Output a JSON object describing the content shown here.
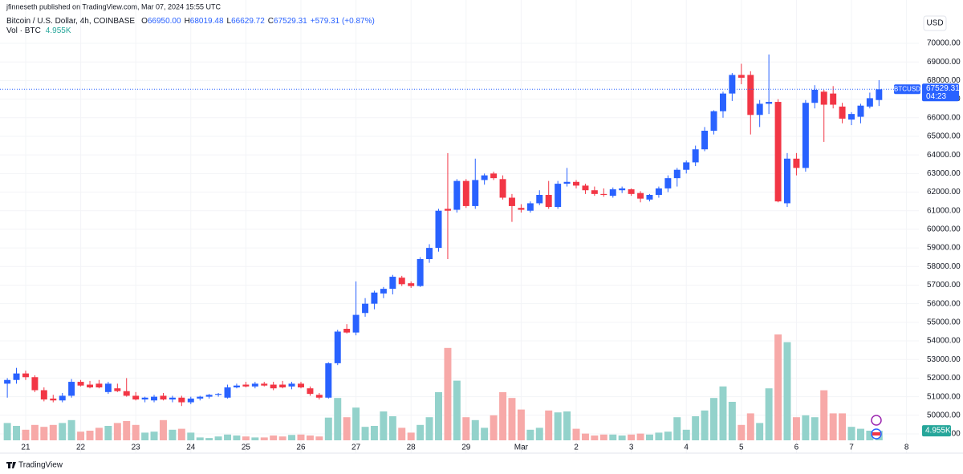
{
  "chart_data": {
    "type": "candlestick",
    "author_line": "jfinneseth published on TradingView.com, Mar 07, 2024 15:55 UTC",
    "symbol": "Bitcoin / U.S. Dollar, 4h, COINBASE",
    "ohlc": [
      {
        "label": "O",
        "value": "66950.00"
      },
      {
        "label": "H",
        "value": "68019.48"
      },
      {
        "label": "L",
        "value": "66629.72"
      },
      {
        "label": "C",
        "value": "67529.31"
      }
    ],
    "change": "+579.31 (+0.87%)",
    "volume_label": "Vol · BTC",
    "volume_value": "4.955K",
    "currency": "USD",
    "ticker": "BTCUSD",
    "last_price": "67529.31",
    "countdown": "04:23",
    "brand": "TradingView",
    "up_color": "#2962ff",
    "down_color": "#f23645",
    "volume_up_color": "#93d2cb",
    "volume_down_color": "#f7a9a8",
    "grid": true,
    "x": [
      20.667,
      20.833,
      21,
      21.167,
      21.333,
      21.5,
      21.667,
      21.833,
      22,
      22.167,
      22.333,
      22.5,
      22.667,
      22.833,
      23,
      23.167,
      23.333,
      23.5,
      23.667,
      23.833,
      24,
      24.167,
      24.333,
      24.5,
      24.667,
      24.833,
      25,
      25.167,
      25.333,
      25.5,
      25.667,
      25.833,
      26,
      26.167,
      26.333,
      26.5,
      26.667,
      26.833,
      27,
      27.167,
      27.333,
      27.5,
      27.667,
      27.833,
      28,
      28.167,
      28.333,
      28.5,
      28.667,
      28.833,
      29,
      29.167,
      29.333,
      29.5,
      29.667,
      29.833,
      30,
      30.167,
      30.333,
      30.5,
      30.667,
      30.833,
      31,
      31.167,
      31.333,
      31.5,
      31.667,
      31.833,
      32,
      32.167,
      32.333,
      32.5,
      32.667,
      32.833,
      33,
      33.167,
      33.333,
      33.5,
      33.667,
      33.833,
      34,
      34.167,
      34.333,
      34.5,
      34.667,
      34.833,
      35,
      35.167,
      35.333,
      35.5,
      35.667,
      35.833,
      36,
      36.167,
      36.333,
      36.5
    ],
    "open": [
      51700,
      51900,
      52250,
      52050,
      51350,
      50900,
      50800,
      51050,
      51800,
      51650,
      51700,
      51250,
      51450,
      51300,
      51050,
      50850,
      50800,
      51050,
      50850,
      50950,
      50700,
      50900,
      51000,
      51100,
      50950,
      51500,
      51650,
      51550,
      51700,
      51650,
      51650,
      51550,
      51700,
      51450,
      51100,
      50950,
      52800,
      54650,
      54450,
      55500,
      56000,
      56550,
      56800,
      57400,
      57100,
      56950,
      58400,
      59000,
      61100,
      61050,
      62600,
      61250,
      62650,
      63000,
      62700,
      61700,
      61150,
      61000,
      61400,
      61850,
      61200,
      62450,
      62550,
      62350,
      62100,
      61900,
      61800,
      62100,
      62150,
      61950,
      61600,
      61850,
      62200,
      62750,
      63200,
      63600,
      64300,
      65300,
      66350,
      67300,
      68300,
      68300,
      66150,
      66750,
      66850,
      61400,
      63800,
      63300,
      66800,
      67400,
      67300,
      66600,
      65900,
      66050,
      66600,
      66950
    ],
    "high": [
      52000,
      52550,
      52400,
      52150,
      51500,
      51100,
      51200,
      51950,
      51900,
      51850,
      51900,
      51800,
      51700,
      52000,
      51250,
      51000,
      51100,
      51200,
      51050,
      51050,
      51000,
      51050,
      51150,
      51200,
      51650,
      51700,
      51800,
      51800,
      51800,
      51800,
      51850,
      51800,
      51800,
      51550,
      51200,
      52850,
      54600,
      54900,
      57200,
      56300,
      56700,
      56900,
      57550,
      57500,
      57200,
      58500,
      59200,
      61100,
      64100,
      62700,
      62700,
      63800,
      63000,
      63100,
      62900,
      61900,
      61350,
      61500,
      62100,
      62600,
      62600,
      63300,
      62650,
      62450,
      62300,
      62200,
      62250,
      62300,
      62200,
      62050,
      61900,
      62300,
      62900,
      63300,
      63700,
      64500,
      65500,
      66400,
      67400,
      68400,
      68900,
      68500,
      66950,
      69400,
      67000,
      64100,
      64100,
      66950,
      67750,
      67500,
      67700,
      66800,
      66300,
      66750,
      67350,
      68019.48
    ],
    "low": [
      50950,
      51700,
      51900,
      51250,
      50750,
      50700,
      50700,
      50950,
      51550,
      51450,
      51450,
      51150,
      51250,
      51000,
      50800,
      50700,
      50700,
      50800,
      50700,
      50500,
      50600,
      50800,
      50900,
      51000,
      50900,
      51450,
      51500,
      51450,
      51550,
      51350,
      51450,
      51400,
      51450,
      51050,
      50850,
      50900,
      52700,
      54400,
      54300,
      55300,
      55700,
      56300,
      56500,
      56950,
      56850,
      56900,
      58200,
      58800,
      58400,
      60900,
      61150,
      61100,
      62400,
      62650,
      61600,
      60400,
      60900,
      60900,
      61300,
      61100,
      61100,
      62300,
      62200,
      61900,
      61800,
      61750,
      61700,
      61950,
      61800,
      61450,
      61500,
      61700,
      62000,
      62300,
      63000,
      63400,
      64200,
      65100,
      66000,
      66900,
      67800,
      65100,
      65500,
      66200,
      61450,
      61200,
      62900,
      63100,
      66500,
      64700,
      66500,
      65700,
      65600,
      65700,
      66500,
      66629.72
    ],
    "close": [
      51900,
      52250,
      52050,
      51350,
      50850,
      50800,
      51050,
      51800,
      51600,
      51500,
      51500,
      51700,
      51300,
      51050,
      50850,
      50950,
      51000,
      50850,
      50950,
      50700,
      50900,
      51000,
      51100,
      51150,
      51500,
      51600,
      51550,
      51700,
      51600,
      51450,
      51500,
      51700,
      51500,
      51150,
      50950,
      52800,
      54500,
      54450,
      55400,
      56000,
      56600,
      56800,
      57450,
      57050,
      56950,
      58400,
      59000,
      61000,
      61000,
      62600,
      61250,
      62650,
      62900,
      62750,
      61700,
      61250,
      61050,
      61400,
      61850,
      61200,
      62450,
      62550,
      62350,
      62100,
      61900,
      61850,
      62150,
      62200,
      61900,
      61650,
      61850,
      62200,
      62750,
      63200,
      63600,
      64300,
      65300,
      66350,
      67300,
      68300,
      68150,
      66150,
      66750,
      66850,
      61500,
      63800,
      63300,
      66800,
      67500,
      66700,
      66700,
      65950,
      66200,
      66650,
      67050,
      67529.31
    ],
    "volume": [
      9000,
      7500,
      5500,
      8000,
      7000,
      8000,
      9000,
      10500,
      4500,
      5000,
      6500,
      7500,
      9000,
      10000,
      8000,
      4000,
      4500,
      10500,
      5500,
      6000,
      4000,
      1500,
      1200,
      2000,
      3000,
      2500,
      2000,
      1500,
      1500,
      2500,
      2000,
      2800,
      3000,
      2500,
      2000,
      11800,
      22000,
      12000,
      17000,
      7000,
      7500,
      15000,
      12500,
      6500,
      4000,
      8000,
      12000,
      25000,
      48000,
      31000,
      12000,
      10500,
      6500,
      13000,
      25000,
      22000,
      16000,
      5500,
      6500,
      15500,
      14500,
      15000,
      6000,
      3500,
      2500,
      3000,
      3000,
      2500,
      3000,
      3500,
      3000,
      4000,
      4500,
      12000,
      5500,
      12500,
      15500,
      22000,
      28000,
      20000,
      8000,
      14000,
      9000,
      27000,
      55000,
      51000,
      12000,
      13000,
      12000,
      26000,
      14000,
      14000,
      7000,
      6000,
      5000,
      4955
    ],
    "xlim": [
      20.534,
      37.224
    ],
    "xticks": [
      21,
      22,
      23,
      24,
      25,
      26,
      27,
      28,
      29,
      {
        "value": 30,
        "label": "Mar"
      },
      {
        "value": 31,
        "label": "2"
      },
      {
        "value": 32,
        "label": "3"
      },
      {
        "value": 33,
        "label": "4"
      },
      {
        "value": 34,
        "label": "5"
      },
      {
        "value": 35,
        "label": "6"
      },
      {
        "value": 36,
        "label": "7"
      },
      {
        "value": 37,
        "label": "8"
      }
    ],
    "ylim": [
      47965,
      72329
    ],
    "yticks": [
      {
        "value": 49000,
        "label": "49000.00"
      },
      {
        "value": 50000,
        "label": "50000.00"
      },
      {
        "value": 51000,
        "label": "51000.00"
      },
      {
        "value": 52000,
        "label": "52000.00"
      },
      {
        "value": 53000,
        "label": "53000.00"
      },
      {
        "value": 54000,
        "label": "54000.00"
      },
      {
        "value": 55000,
        "label": "55000.00"
      },
      {
        "value": 56000,
        "label": "56000.00"
      },
      {
        "value": 57000,
        "label": "57000.00"
      },
      {
        "value": 58000,
        "label": "58000.00"
      },
      {
        "value": 59000,
        "label": "59000.00"
      },
      {
        "value": 60000,
        "label": "60000.00"
      },
      {
        "value": 61000,
        "label": "61000.00"
      },
      {
        "value": 62000,
        "label": "62000.00"
      },
      {
        "value": 63000,
        "label": "63000.00"
      },
      {
        "value": 64000,
        "label": "64000.00"
      },
      {
        "value": 65000,
        "label": "65000.00"
      },
      {
        "value": 66000,
        "label": "66000.00"
      },
      {
        "value": 67000,
        "label": "67000.00"
      },
      {
        "value": 68000,
        "label": "68000.00"
      },
      {
        "value": 69000,
        "label": "69000.00"
      },
      {
        "value": 70000,
        "label": "70000.00"
      }
    ]
  }
}
